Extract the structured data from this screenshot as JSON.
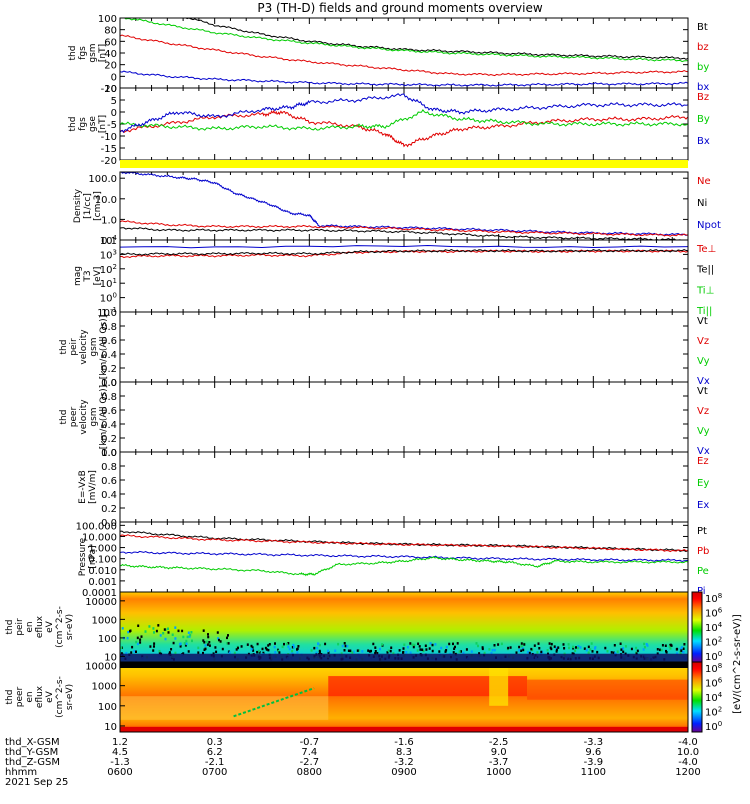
{
  "title": "P3 (TH-D) fields and ground moments overview",
  "colors": {
    "black": "#000000",
    "red": "#e00000",
    "green": "#00cc00",
    "blue": "#0000cc",
    "yellow": "#ffff00"
  },
  "chart_data": [
    {
      "type": "line",
      "ylabel": [
        "thd",
        "fgs",
        "gsm",
        "[nT]"
      ],
      "ylim": [
        -20,
        100
      ],
      "yticks": [
        -20,
        0,
        20,
        40,
        60,
        80,
        100
      ],
      "legend": [
        {
          "name": "Bt",
          "color": "black"
        },
        {
          "name": "bz",
          "color": "red"
        },
        {
          "name": "by",
          "color": "green"
        },
        {
          "name": "bx",
          "color": "blue"
        }
      ],
      "series": [
        {
          "name": "Bt",
          "color": "black",
          "x": [
            6.0,
            6.5,
            7.0,
            7.5,
            8.0,
            8.5,
            9.0,
            9.5,
            10.0,
            10.5,
            11.0,
            11.5,
            12.0
          ],
          "y": [
            140,
            110,
            88,
            72,
            60,
            52,
            46,
            43,
            40,
            37,
            35,
            33,
            31
          ]
        },
        {
          "name": "bz",
          "color": "red",
          "x": [
            6.0,
            6.5,
            7.0,
            7.5,
            8.0,
            8.5,
            9.0,
            9.5,
            10.0,
            10.5,
            11.0,
            11.5,
            12.0
          ],
          "y": [
            70,
            57,
            45,
            34,
            25,
            18,
            11,
            4,
            3,
            4,
            5,
            7,
            8
          ]
        },
        {
          "name": "by",
          "color": "green",
          "x": [
            6.0,
            6.5,
            7.0,
            7.5,
            8.0,
            8.5,
            9.0,
            9.5,
            10.0,
            10.5,
            11.0,
            11.5,
            12.0
          ],
          "y": [
            102,
            88,
            75,
            65,
            57,
            50,
            44,
            40,
            37,
            34,
            32,
            29,
            27
          ]
        },
        {
          "name": "bx",
          "color": "blue",
          "x": [
            6.0,
            6.5,
            7.0,
            7.5,
            8.0,
            8.5,
            9.0,
            9.5,
            10.0,
            10.5,
            11.0,
            11.5,
            12.0
          ],
          "y": [
            8,
            0,
            -5,
            -8,
            -11,
            -13,
            -14,
            -15,
            -15,
            -14,
            -13,
            -13,
            -12
          ]
        }
      ]
    },
    {
      "type": "line",
      "ylabel": [
        "thd",
        "fgs",
        "gse",
        "[nT]"
      ],
      "ylim": [
        -20,
        10
      ],
      "yticks": [
        -20,
        -15,
        -10,
        -5,
        0,
        5,
        10
      ],
      "legend": [
        {
          "name": "Bz",
          "color": "red"
        },
        {
          "name": "By",
          "color": "green"
        },
        {
          "name": "Bx",
          "color": "blue"
        }
      ],
      "series": [
        {
          "name": "Bz",
          "color": "red",
          "x": [
            6.0,
            6.5,
            7.0,
            7.5,
            7.7,
            8.0,
            8.5,
            8.8,
            9.0,
            9.3,
            9.6,
            10.0,
            10.5,
            11.0,
            11.5,
            12.0
          ],
          "y": [
            -8,
            -5,
            -2,
            -1,
            0,
            -4,
            -6,
            -9,
            -14,
            -10,
            -7,
            -6,
            -4,
            -3,
            -3,
            -2
          ]
        },
        {
          "name": "By",
          "color": "green",
          "x": [
            6.0,
            6.5,
            7.0,
            7.5,
            8.0,
            8.5,
            8.8,
            9.2,
            9.6,
            10.0,
            10.5,
            11.0,
            11.5,
            12.0
          ],
          "y": [
            -5,
            -6,
            -7,
            -6,
            -7,
            -6,
            -6,
            0,
            -3,
            -4,
            -5,
            -5,
            -5,
            -5
          ]
        },
        {
          "name": "Bx",
          "color": "blue",
          "x": [
            6.0,
            6.3,
            6.6,
            7.0,
            7.5,
            7.8,
            8.0,
            8.5,
            9.0,
            9.3,
            9.6,
            10.0,
            10.5,
            11.0,
            11.5,
            12.0
          ],
          "y": [
            -8,
            -4,
            0,
            -2,
            1,
            2,
            4,
            5,
            7,
            1,
            0,
            1,
            2,
            3,
            3,
            3
          ]
        }
      ]
    },
    {
      "type": "line",
      "scale": "log",
      "ylabel": [
        "Density",
        "[1/cc]",
        "[cm-3]"
      ],
      "ylim": [
        0.1,
        200
      ],
      "yticks": [
        0.1,
        1.0,
        10.0,
        100.0
      ],
      "legend": [
        {
          "name": "Ne",
          "color": "red"
        },
        {
          "name": "Ni",
          "color": "black"
        },
        {
          "name": "Npot",
          "color": "blue"
        }
      ],
      "series": [
        {
          "name": "Npot",
          "color": "blue",
          "x": [
            6.0,
            6.3,
            6.6,
            6.8,
            7.0,
            7.2,
            7.4,
            7.6,
            7.8,
            8.0,
            8.1,
            8.5,
            9.0,
            9.5,
            10.0,
            10.5,
            11.0,
            11.5,
            12.0
          ],
          "y": [
            200,
            150,
            110,
            90,
            60,
            20,
            10,
            5,
            2,
            1.6,
            0.5,
            0.45,
            0.4,
            0.35,
            0.3,
            0.25,
            0.22,
            0.2,
            0.18
          ]
        },
        {
          "name": "Ne",
          "color": "red",
          "x": [
            6.0,
            6.5,
            7.0,
            7.5,
            8.0,
            8.5,
            9.0,
            9.5,
            10.0,
            10.5,
            11.0,
            11.5,
            12.0
          ],
          "y": [
            0.8,
            0.55,
            0.45,
            0.45,
            0.45,
            0.4,
            0.35,
            0.3,
            0.25,
            0.22,
            0.2,
            0.18,
            0.17
          ]
        },
        {
          "name": "Ni",
          "color": "black",
          "x": [
            6.0,
            6.5,
            7.0,
            7.5,
            8.0,
            8.5,
            9.0,
            9.5,
            10.0,
            10.5,
            11.0,
            11.5,
            12.0
          ],
          "y": [
            0.4,
            0.3,
            0.3,
            0.3,
            0.3,
            0.28,
            0.25,
            0.2,
            0.15,
            0.13,
            0.12,
            0.11,
            0.1
          ]
        }
      ]
    },
    {
      "type": "line",
      "scale": "log",
      "ylabel": [
        "mag",
        "T3",
        "[eV]"
      ],
      "ylim": [
        0.1,
        10000
      ],
      "yticks": [
        0.1,
        1,
        10,
        100,
        1000,
        10000
      ],
      "ytick_labels": [
        "10^-1",
        "10^0",
        "10^1",
        "10^2",
        "10^3",
        "10^4"
      ],
      "legend": [
        {
          "name": "Te⊥",
          "color": "red"
        },
        {
          "name": "Te||",
          "color": "black"
        },
        {
          "name": "Ti⊥",
          "color": "green"
        },
        {
          "name": "Ti||",
          "color": "green"
        }
      ],
      "series": [
        {
          "name": "Te⊥",
          "color": "red",
          "x": [
            6.0,
            6.5,
            7.0,
            7.5,
            8.0,
            8.5,
            9.0,
            9.5,
            10.0,
            10.5,
            11.0,
            11.5,
            12.0
          ],
          "y": [
            700,
            800,
            800,
            900,
            800,
            1400,
            1600,
            1600,
            1700,
            1600,
            1700,
            1700,
            1700
          ]
        },
        {
          "name": "Te||",
          "color": "black",
          "x": [
            6.0,
            6.5,
            7.0,
            7.5,
            8.0,
            8.5,
            9.0,
            9.5,
            10.0,
            10.5,
            11.0,
            11.5,
            12.0
          ],
          "y": [
            1000,
            1100,
            1100,
            1200,
            1100,
            1500,
            1700,
            1800,
            1800,
            1700,
            1800,
            1800,
            1800
          ]
        },
        {
          "name": "Ti",
          "color": "blue",
          "x": [
            6.0,
            12.0
          ],
          "y": [
            3500,
            3500
          ]
        }
      ]
    },
    {
      "type": "line",
      "ylabel": [
        "thd",
        "peir",
        "velocity",
        "gsm",
        "[km/s (All Qs)]"
      ],
      "ylim": [
        0,
        1
      ],
      "yticks": [
        0,
        0.2,
        0.4,
        0.6,
        0.8,
        1.0
      ],
      "legend": [
        {
          "name": "Vt",
          "color": "black"
        },
        {
          "name": "Vz",
          "color": "red"
        },
        {
          "name": "Vy",
          "color": "green"
        },
        {
          "name": "Vx",
          "color": "blue"
        }
      ],
      "series": []
    },
    {
      "type": "line",
      "ylabel": [
        "thd",
        "peer",
        "velocity",
        "gsm",
        "[km/s (All Qs)]"
      ],
      "ylim": [
        0,
        1
      ],
      "yticks": [
        0,
        0.2,
        0.4,
        0.6,
        0.8,
        1.0
      ],
      "legend": [
        {
          "name": "Vt",
          "color": "black"
        },
        {
          "name": "Vz",
          "color": "red"
        },
        {
          "name": "Vy",
          "color": "green"
        },
        {
          "name": "Vx",
          "color": "blue"
        }
      ],
      "series": []
    },
    {
      "type": "line",
      "ylabel": [
        "E=-VxB",
        "[mV/m]"
      ],
      "ylim": [
        0,
        1
      ],
      "yticks": [
        0,
        0.2,
        0.4,
        0.6,
        0.8,
        1.0
      ],
      "legend": [
        {
          "name": "Ez",
          "color": "red"
        },
        {
          "name": "Ey",
          "color": "green"
        },
        {
          "name": "Ex",
          "color": "blue"
        }
      ],
      "series": []
    },
    {
      "type": "line",
      "scale": "log",
      "ylabel": [
        "Pressure",
        "[nPa]"
      ],
      "ylim": [
        0.0001,
        200
      ],
      "yticks": [
        0.0001,
        0.001,
        0.01,
        0.1,
        1,
        10,
        100
      ],
      "ytick_labels": [
        "0.0001",
        "0.001",
        "0.010",
        "0.100",
        "1.000",
        "10.000",
        "100.000"
      ],
      "legend": [
        {
          "name": "Pt",
          "color": "black"
        },
        {
          "name": "Pb",
          "color": "red"
        },
        {
          "name": "Pe",
          "color": "green"
        },
        {
          "name": "Pi",
          "color": "blue"
        }
      ],
      "series": [
        {
          "name": "Pt",
          "color": "black",
          "x": [
            6.0,
            6.5,
            7.0,
            7.5,
            8.0,
            8.5,
            9.0,
            9.5,
            10.0,
            10.5,
            11.0,
            11.5,
            12.0
          ],
          "y": [
            30,
            14,
            7,
            5,
            3.5,
            2.5,
            2.0,
            1.7,
            1.5,
            1.2,
            0.9,
            0.7,
            0.55
          ]
        },
        {
          "name": "Pb",
          "color": "red",
          "x": [
            6.0,
            6.5,
            7.0,
            7.5,
            8.0,
            8.5,
            9.0,
            9.5,
            10.0,
            10.5,
            11.0,
            11.5,
            12.0
          ],
          "y": [
            12,
            8,
            5,
            4,
            3,
            2.3,
            1.9,
            1.6,
            1.4,
            1.1,
            0.85,
            0.65,
            0.5
          ]
        },
        {
          "name": "Pi",
          "color": "blue",
          "x": [
            6.0,
            6.5,
            7.0,
            7.5,
            8.0,
            8.5,
            9.0,
            9.5,
            10.0,
            10.5,
            11.0,
            11.5,
            12.0
          ],
          "y": [
            0.4,
            0.32,
            0.28,
            0.24,
            0.2,
            0.17,
            0.15,
            0.12,
            0.1,
            0.09,
            0.08,
            0.075,
            0.07
          ]
        },
        {
          "name": "Pe",
          "color": "green",
          "x": [
            6.0,
            6.3,
            6.6,
            7.0,
            7.5,
            7.9,
            8.05,
            8.3,
            8.7,
            9.0,
            9.3,
            9.6,
            9.9,
            10.1,
            10.4,
            10.6,
            11.0,
            11.5,
            12.0
          ],
          "y": [
            0.025,
            0.018,
            0.015,
            0.012,
            0.008,
            0.004,
            0.004,
            0.03,
            0.04,
            0.06,
            0.12,
            0.08,
            0.06,
            0.05,
            0.02,
            0.06,
            0.05,
            0.05,
            0.05
          ]
        }
      ]
    },
    {
      "type": "heatmap",
      "ylabel": [
        "thd",
        "peir",
        "en",
        "eflux",
        "eV",
        "(cm^2-s-",
        "sr-eV)"
      ],
      "ylim": [
        5,
        30000
      ],
      "yticks": [
        10,
        100,
        1000,
        10000
      ],
      "colorbar_ticks": [
        "10^0",
        "10^2",
        "10^4",
        "10^6",
        "10^8"
      ]
    },
    {
      "type": "heatmap",
      "ylabel": [
        "thd",
        "peer",
        "en",
        "eflux",
        "eV",
        "(cm^2-s-",
        "sr-eV)"
      ],
      "ylim": [
        5,
        15000
      ],
      "yticks": [
        10,
        100,
        1000,
        10000
      ],
      "colorbar_ticks": [
        "10^0",
        "10^2",
        "10^4",
        "10^6",
        "10^8"
      ]
    }
  ],
  "colorbar_label": "[eV/(cm^2-s-sr-eV)]",
  "xaxis": {
    "hours": [
      "0600",
      "0700",
      "0800",
      "0900",
      "1000",
      "1100",
      "1200"
    ],
    "rows": [
      {
        "label": "thd_X-GSM",
        "values": [
          "1.2",
          "0.3",
          "-0.7",
          "-1.6",
          "-2.5",
          "-3.3",
          "-4.0"
        ]
      },
      {
        "label": "thd_Y-GSM",
        "values": [
          "4.5",
          "6.2",
          "7.4",
          "8.3",
          "9.0",
          "9.6",
          "10.0"
        ]
      },
      {
        "label": "thd_Z-GSM",
        "values": [
          "-1.3",
          "-2.1",
          "-2.7",
          "-3.2",
          "-3.7",
          "-3.9",
          "-4.0"
        ]
      },
      {
        "label": "hhmm",
        "values": [
          "0600",
          "0700",
          "0800",
          "0900",
          "1000",
          "1100",
          "1200"
        ]
      }
    ],
    "date": "2021 Sep 25"
  }
}
